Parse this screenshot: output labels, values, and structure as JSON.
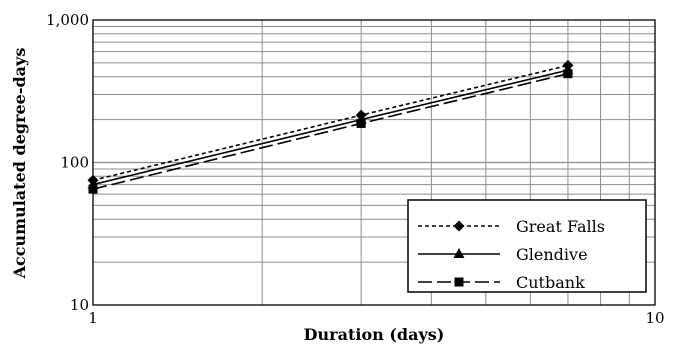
{
  "chart_data": {
    "type": "line",
    "xlabel": "Duration (days)",
    "ylabel": "Accumulated degree-days",
    "xscale": "log",
    "yscale": "log",
    "xlim": [
      1,
      10
    ],
    "ylim": [
      10,
      1000
    ],
    "x_tick_labels": [
      "1",
      "10"
    ],
    "y_tick_labels": [
      "10",
      "100",
      "1,000"
    ],
    "grid": true,
    "legend_position": "bottom-right",
    "series": [
      {
        "name": "Great Falls",
        "line_style": "short-dash",
        "marker": "diamond",
        "x": [
          1,
          3,
          7
        ],
        "y": [
          75,
          215,
          480
        ]
      },
      {
        "name": "Glendive",
        "line_style": "solid",
        "marker": "triangle",
        "x": [
          1,
          3,
          7
        ],
        "y": [
          70,
          200,
          445
        ]
      },
      {
        "name": "Cutbank",
        "line_style": "long-dash",
        "marker": "square",
        "x": [
          1,
          3,
          7
        ],
        "y": [
          65,
          188,
          420
        ]
      }
    ]
  }
}
